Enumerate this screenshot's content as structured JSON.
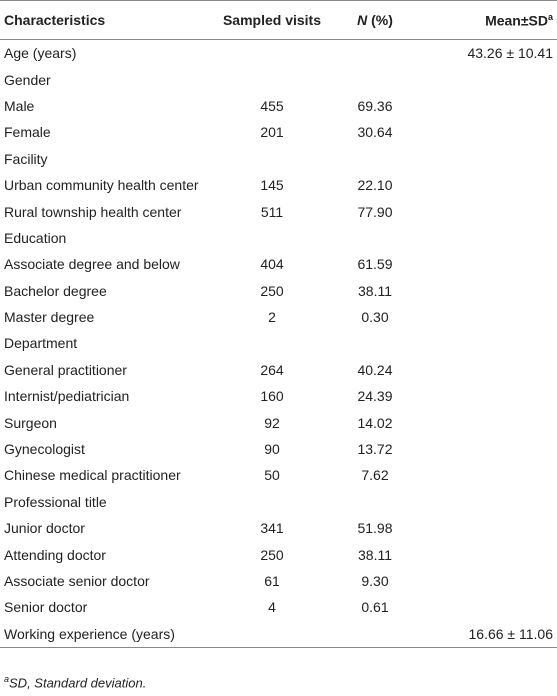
{
  "header": [
    [
      "Characteristics"
    ],
    [
      "Sampled visits"
    ],
    [
      "N",
      "(%)"
    ],
    [
      "Mean±SD",
      "a"
    ]
  ],
  "rows": [
    [
      "Age (years)",
      null,
      null,
      "43.26 ± 10.41"
    ],
    [
      "Gender",
      null,
      null,
      null
    ],
    [
      "Male",
      "455",
      "69.36",
      null
    ],
    [
      "Female",
      "201",
      "30.64",
      null
    ],
    [
      "Facility",
      null,
      null,
      null
    ],
    [
      "Urban community health center",
      "145",
      "22.10",
      null
    ],
    [
      "Rural township health center",
      "511",
      "77.90",
      null
    ],
    [
      "Education",
      null,
      null,
      null
    ],
    [
      "Associate degree and below",
      "404",
      "61.59",
      null
    ],
    [
      "Bachelor degree",
      "250",
      "38.11",
      null
    ],
    [
      "Master degree",
      "2",
      "0.30",
      null
    ],
    [
      "Department",
      null,
      null,
      null
    ],
    [
      "General practitioner",
      "264",
      "40.24",
      null
    ],
    [
      "Internist/pediatrician",
      "160",
      "24.39",
      null
    ],
    [
      "Surgeon",
      "92",
      "14.02",
      null
    ],
    [
      "Gynecologist",
      "90",
      "13.72",
      null
    ],
    [
      "Chinese medical practitioner",
      "50",
      "7.62",
      null
    ],
    [
      "Professional title",
      null,
      null,
      null
    ],
    [
      "Junior doctor",
      "341",
      "51.98",
      null
    ],
    [
      "Attending doctor",
      "250",
      "38.11",
      null
    ],
    [
      "Associate senior doctor",
      "61",
      "9.30",
      null
    ],
    [
      "Senior doctor",
      "4",
      "0.61",
      null
    ],
    [
      "Working experience (years)",
      null,
      null,
      "16.66 ± 11.06"
    ]
  ],
  "footnote": {
    "mark": "a",
    "text": "SD, Standard deviation."
  }
}
